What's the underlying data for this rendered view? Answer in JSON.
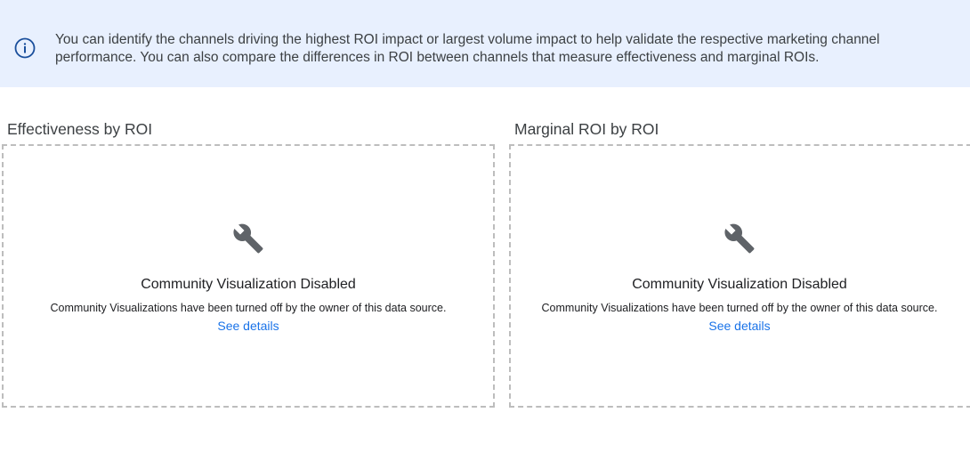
{
  "banner": {
    "icon": "info-icon",
    "text": "You can identify the channels driving the highest ROI impact or largest volume impact to help validate the respective marketing channel performance. You can also compare the differences in ROI between channels that measure effectiveness and marginal ROIs."
  },
  "panels": [
    {
      "title": "Effectiveness by ROI",
      "icon": "wrench-icon",
      "heading": "Community Visualization Disabled",
      "message": "Community Visualizations have been turned off by the owner of this data source.",
      "link": "See details"
    },
    {
      "title": "Marginal ROI by ROI",
      "icon": "wrench-icon",
      "heading": "Community Visualization Disabled",
      "message": "Community Visualizations have been turned off by the owner of this data source.",
      "link": "See details"
    }
  ],
  "colors": {
    "banner_bg": "#e8f0fe",
    "link": "#1a73e8",
    "icon": "#5f6368",
    "info": "#1a4f9c"
  }
}
